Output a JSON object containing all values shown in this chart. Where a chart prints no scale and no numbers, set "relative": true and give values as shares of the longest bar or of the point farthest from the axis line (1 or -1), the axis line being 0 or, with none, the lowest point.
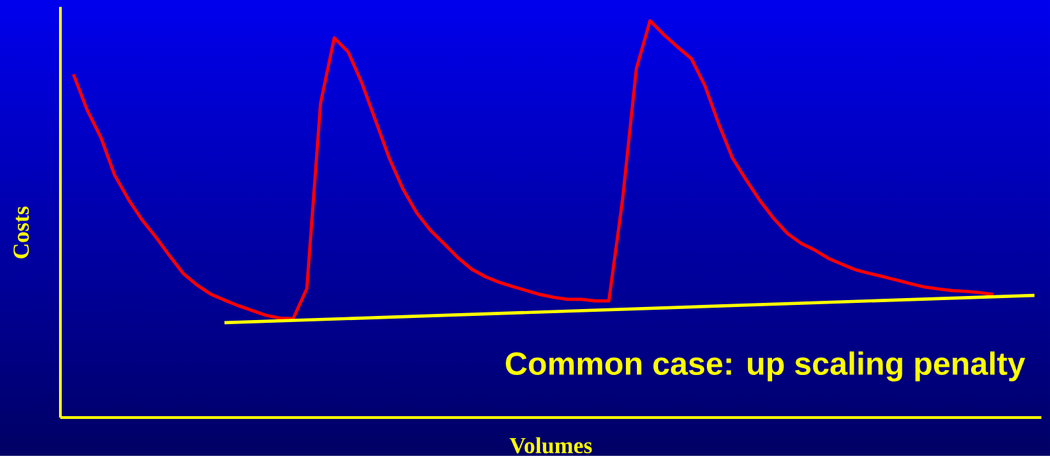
{
  "chart_data": {
    "type": "line",
    "relative": true,
    "xlabel": "Volumes",
    "ylabel": "Costs",
    "annotations": [
      "Common case: up scaling penalty"
    ],
    "categories": [
      null,
      null,
      null,
      null,
      null,
      null,
      null,
      null,
      null,
      null,
      null,
      null,
      null,
      null,
      null,
      null,
      null,
      null,
      null,
      null,
      null,
      null,
      null,
      null,
      null,
      null,
      null,
      null,
      null,
      null,
      null,
      null,
      null,
      null,
      null,
      null,
      null,
      null,
      null,
      null,
      null,
      null,
      null,
      null,
      null,
      null,
      null,
      null,
      null,
      null,
      null,
      null,
      null,
      null,
      null,
      null,
      null,
      null,
      null,
      null,
      null,
      null,
      null,
      null,
      null,
      null,
      null,
      null,
      null,
      null,
      null
    ],
    "series": [
      {
        "color": "#ff0000",
        "values": [
          0.865,
          0.775,
          0.706,
          0.611,
          0.55,
          0.498,
          0.455,
          0.408,
          0.363,
          0.334,
          0.311,
          0.296,
          0.282,
          0.27,
          0.258,
          0.251,
          0.249,
          0.325,
          0.792,
          0.957,
          0.922,
          0.844,
          0.749,
          0.654,
          0.576,
          0.516,
          0.472,
          0.438,
          0.403,
          0.374,
          0.355,
          0.341,
          0.33,
          0.32,
          0.31,
          0.303,
          0.298,
          0.298,
          0.294,
          0.294,
          0.55,
          0.879,
          1.0,
          0.965,
          0.934,
          0.905,
          0.836,
          0.74,
          0.654,
          0.599,
          0.547,
          0.502,
          0.464,
          0.439,
          0.422,
          0.401,
          0.386,
          0.372,
          0.363,
          0.355,
          0.346,
          0.337,
          0.329,
          0.324,
          0.32,
          0.318,
          0.315,
          0.31,
          null,
          null,
          null
        ]
      },
      {
        "color": "#ffff00",
        "values": [
          null,
          null,
          null,
          null,
          null,
          null,
          null,
          null,
          null,
          null,
          null,
          0.239,
          null,
          null,
          null,
          null,
          null,
          null,
          null,
          null,
          null,
          null,
          null,
          null,
          null,
          null,
          null,
          null,
          null,
          null,
          null,
          null,
          null,
          null,
          null,
          null,
          null,
          null,
          null,
          null,
          null,
          null,
          null,
          null,
          null,
          null,
          null,
          null,
          null,
          null,
          null,
          null,
          null,
          null,
          null,
          null,
          null,
          null,
          null,
          null,
          null,
          null,
          null,
          null,
          null,
          null,
          null,
          null,
          null,
          null,
          0.308
        ]
      }
    ]
  }
}
